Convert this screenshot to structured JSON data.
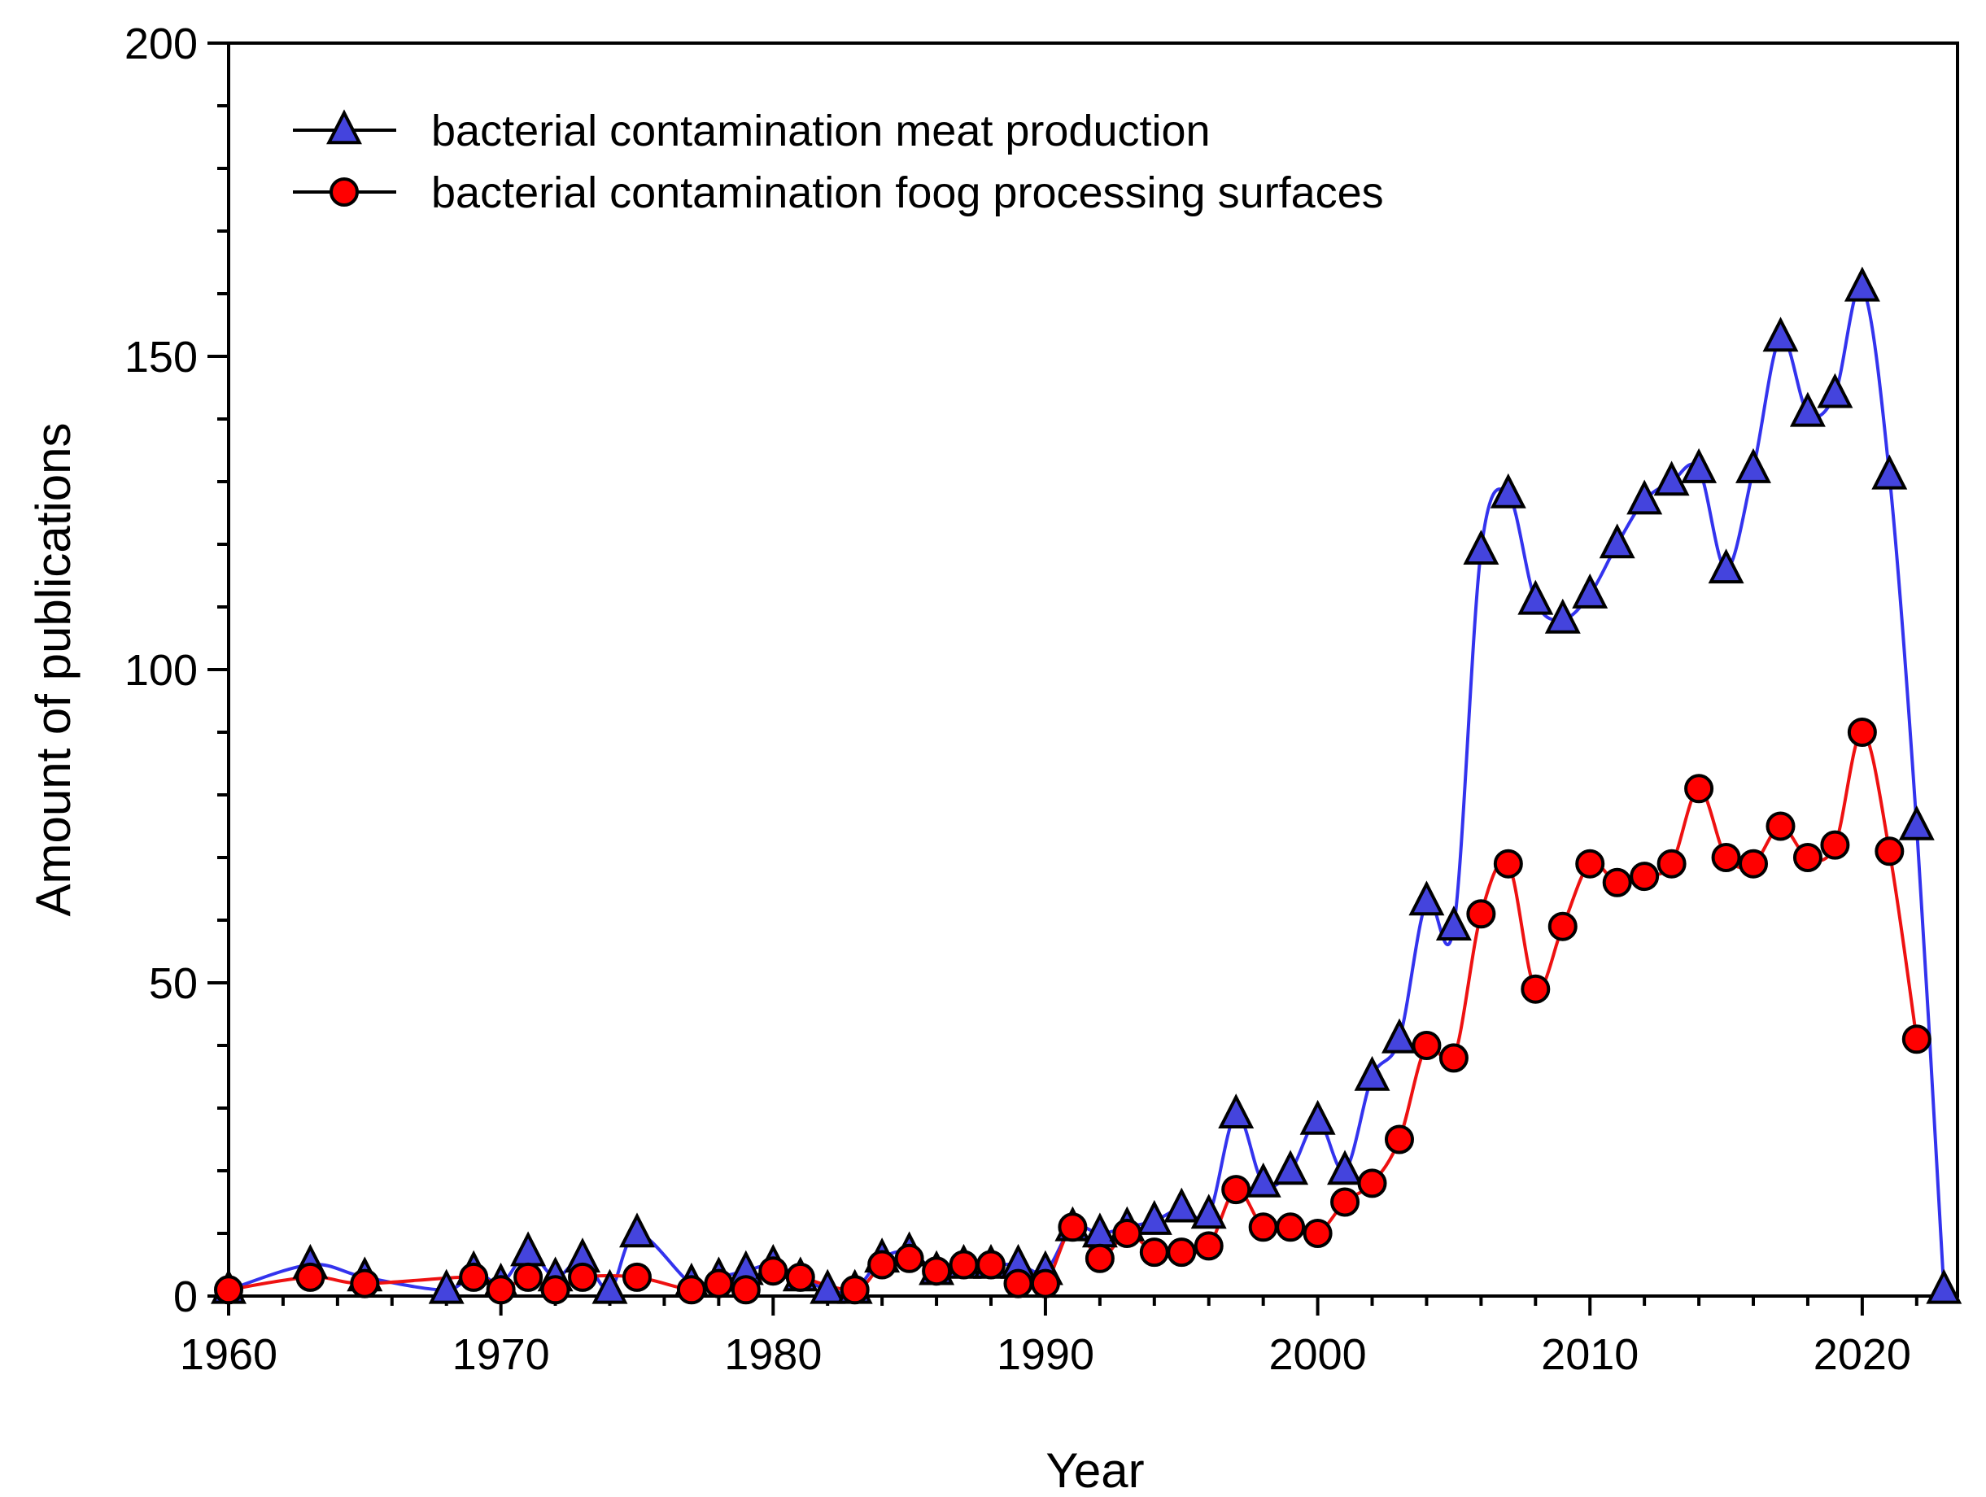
{
  "chart_data": {
    "type": "line",
    "title": "",
    "xlabel": "Year",
    "ylabel": "Amount of publications",
    "xlim": [
      1960,
      2023.5
    ],
    "ylim": [
      0,
      200
    ],
    "x_ticks": [
      1960,
      1970,
      1980,
      1990,
      2000,
      2010,
      2020
    ],
    "x_tick_labels": [
      "1960",
      "1970",
      "1980",
      "1990",
      "2000",
      "2010",
      "2020"
    ],
    "y_ticks": [
      0,
      50,
      100,
      150,
      200
    ],
    "y_tick_labels": [
      "0",
      "50",
      "100",
      "150",
      "200"
    ],
    "grid": false,
    "legend_position": "top-left",
    "series": [
      {
        "name": "bacterial contamination meat production",
        "line_color": "#3333ee",
        "marker": "triangle",
        "marker_color": "#4444dd",
        "x": [
          1960,
          1963,
          1965,
          1968,
          1969,
          1970,
          1971,
          1972,
          1973,
          1974,
          1975,
          1977,
          1978,
          1979,
          1980,
          1981,
          1982,
          1983,
          1984,
          1985,
          1986,
          1987,
          1988,
          1989,
          1990,
          1991,
          1992,
          1993,
          1994,
          1995,
          1996,
          1997,
          1998,
          1999,
          2000,
          2001,
          2002,
          2003,
          2004,
          2005,
          2006,
          2007,
          2008,
          2009,
          2010,
          2011,
          2012,
          2013,
          2014,
          2015,
          2016,
          2017,
          2018,
          2019,
          2020,
          2021,
          2022,
          2023
        ],
        "values": [
          1,
          5,
          3,
          1,
          4,
          2,
          7,
          3,
          6,
          1,
          10,
          2,
          3,
          4,
          5,
          3,
          1,
          1,
          6,
          7,
          4,
          5,
          5,
          5,
          4,
          11,
          10,
          11,
          12,
          14,
          13,
          29,
          18,
          20,
          28,
          20,
          35,
          41,
          63,
          59,
          119,
          128,
          111,
          108,
          112,
          120,
          127,
          130,
          132,
          116,
          132,
          153,
          141,
          144,
          161,
          131,
          75,
          1
        ]
      },
      {
        "name": "bacterial contamination foog processing surfaces",
        "line_color": "#ee1111",
        "marker": "circle",
        "marker_color": "#ff0000",
        "x": [
          1960,
          1963,
          1965,
          1969,
          1970,
          1971,
          1972,
          1973,
          1975,
          1977,
          1978,
          1979,
          1980,
          1981,
          1983,
          1984,
          1985,
          1986,
          1987,
          1988,
          1989,
          1990,
          1991,
          1992,
          1993,
          1994,
          1995,
          1996,
          1997,
          1998,
          1999,
          2000,
          2001,
          2002,
          2003,
          2004,
          2005,
          2006,
          2007,
          2008,
          2009,
          2010,
          2011,
          2012,
          2013,
          2014,
          2015,
          2016,
          2017,
          2018,
          2019,
          2020,
          2021,
          2022
        ],
        "values": [
          1,
          3,
          2,
          3,
          1,
          3,
          1,
          3,
          3,
          1,
          2,
          1,
          4,
          3,
          1,
          5,
          6,
          4,
          5,
          5,
          2,
          2,
          11,
          6,
          10,
          7,
          7,
          8,
          17,
          11,
          11,
          10,
          15,
          18,
          25,
          40,
          38,
          61,
          69,
          49,
          59,
          69,
          66,
          67,
          69,
          81,
          70,
          69,
          75,
          70,
          72,
          90,
          71,
          41
        ]
      }
    ]
  }
}
